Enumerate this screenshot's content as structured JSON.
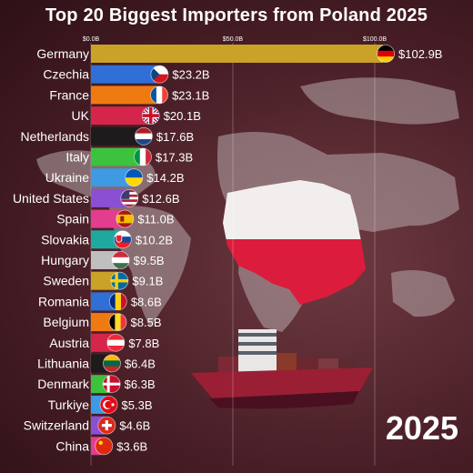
{
  "title": "Top 20 Biggest Importers from Poland 2025",
  "year": "2025",
  "chart_data": {
    "type": "bar",
    "orientation": "horizontal",
    "title": "Top 20 Biggest Importers from Poland 2025",
    "tick_labels": [
      "$0.0B",
      "$50.0B",
      "$100.0B"
    ],
    "tick_values": [
      0,
      50,
      100
    ],
    "xlim": [
      0,
      105
    ],
    "grid": true,
    "categories": [
      "Germany",
      "Czechia",
      "France",
      "UK",
      "Netherlands",
      "Italy",
      "Ukraine",
      "United States",
      "Spain",
      "Slovakia",
      "Hungary",
      "Sweden",
      "Romania",
      "Belgium",
      "Austria",
      "Lithuania",
      "Denmark",
      "Turkiye",
      "Switzerland",
      "China"
    ],
    "values": [
      102.9,
      23.2,
      23.1,
      20.1,
      17.6,
      17.3,
      14.2,
      12.6,
      11.0,
      10.2,
      9.5,
      9.1,
      8.6,
      8.5,
      7.8,
      6.4,
      6.3,
      5.3,
      4.6,
      3.6
    ],
    "value_labels": [
      "$102.9B",
      "$23.2B",
      "$23.1B",
      "$20.1B",
      "$17.6B",
      "$17.3B",
      "$14.2B",
      "$12.6B",
      "$11.0B",
      "$10.2B",
      "$9.5B",
      "$9.1B",
      "$8.6B",
      "$8.5B",
      "$7.8B",
      "$6.4B",
      "$6.3B",
      "$5.3B",
      "$4.6B",
      "$3.6B"
    ],
    "bar_colors": [
      "#c9a227",
      "#2f6fd6",
      "#f07a12",
      "#d5254a",
      "#1e1b1c",
      "#3cc23c",
      "#3d9ae3",
      "#8b4fd4",
      "#e23d8f",
      "#1fa8a0",
      "#bfbfbf",
      "#c9a227",
      "#2f6fd6",
      "#f07a12",
      "#d5254a",
      "#1e1b1c",
      "#3cc23c",
      "#3d9ae3",
      "#8b4fd4",
      "#e23d8f"
    ],
    "flag_icons": [
      "flag-germany-icon",
      "flag-czechia-icon",
      "flag-france-icon",
      "flag-uk-icon",
      "flag-netherlands-icon",
      "flag-italy-icon",
      "flag-ukraine-icon",
      "flag-united-states-icon",
      "flag-spain-icon",
      "flag-slovakia-icon",
      "flag-hungary-icon",
      "flag-sweden-icon",
      "flag-romania-icon",
      "flag-belgium-icon",
      "flag-austria-icon",
      "flag-lithuania-icon",
      "flag-denmark-icon",
      "flag-turkiye-icon",
      "flag-switzerland-icon",
      "flag-china-icon"
    ]
  }
}
